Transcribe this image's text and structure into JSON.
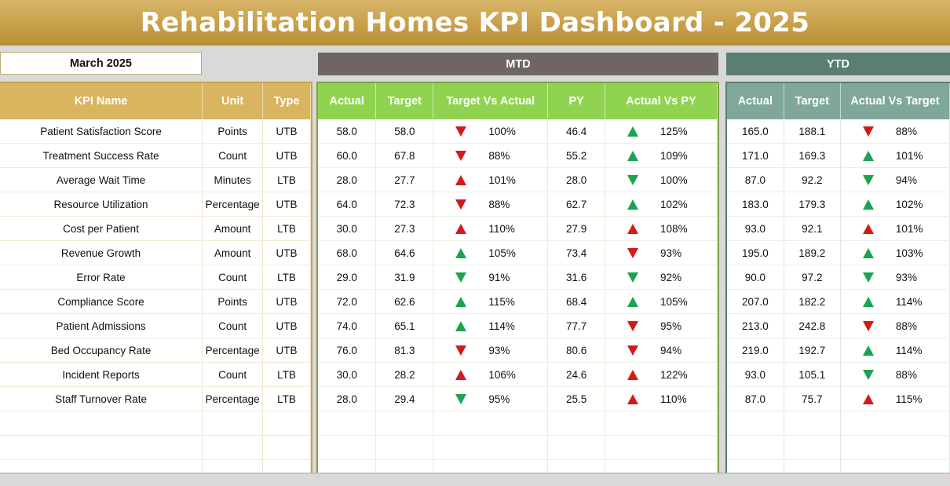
{
  "title": "Rehabilitation Homes KPI Dashboard - 2025",
  "selected_month": "March 2025",
  "mtd_label": "MTD",
  "ytd_label": "YTD",
  "kpi_headers": [
    "KPI Name",
    "Unit",
    "Type"
  ],
  "mtd_headers": [
    "Actual",
    "Target",
    "Target Vs Actual",
    "PY",
    "Actual Vs PY"
  ],
  "ytd_headers": [
    "Actual",
    "Target",
    "Actual Vs Target"
  ],
  "colors": {
    "gold": "#c9a14b",
    "mtd_green": "#90d350",
    "ytd_teal": "#7fa89a",
    "up_green": "#1aa351",
    "down_red": "#d11b1b"
  },
  "rows": [
    {
      "name": "Patient Satisfaction Score",
      "unit": "Points",
      "type": "UTB",
      "mtd_actual": "58.0",
      "mtd_target": "58.0",
      "tva_ind": "down-red",
      "tva_pct": "100%",
      "py": "46.4",
      "avp_ind": "up-green",
      "avp_pct": "125%",
      "ytd_actual": "165.0",
      "ytd_target": "188.1",
      "ytd_ind": "down-red",
      "ytd_pct": "88%"
    },
    {
      "name": "Treatment Success Rate",
      "unit": "Count",
      "type": "UTB",
      "mtd_actual": "60.0",
      "mtd_target": "67.8",
      "tva_ind": "down-red",
      "tva_pct": "88%",
      "py": "55.2",
      "avp_ind": "up-green",
      "avp_pct": "109%",
      "ytd_actual": "171.0",
      "ytd_target": "169.3",
      "ytd_ind": "up-green",
      "ytd_pct": "101%"
    },
    {
      "name": "Average Wait Time",
      "unit": "Minutes",
      "type": "LTB",
      "mtd_actual": "28.0",
      "mtd_target": "27.7",
      "tva_ind": "up-red",
      "tva_pct": "101%",
      "py": "28.0",
      "avp_ind": "down-green",
      "avp_pct": "100%",
      "ytd_actual": "87.0",
      "ytd_target": "92.2",
      "ytd_ind": "down-green",
      "ytd_pct": "94%"
    },
    {
      "name": "Resource Utilization",
      "unit": "Percentage",
      "type": "UTB",
      "mtd_actual": "64.0",
      "mtd_target": "72.3",
      "tva_ind": "down-red",
      "tva_pct": "88%",
      "py": "62.7",
      "avp_ind": "up-green",
      "avp_pct": "102%",
      "ytd_actual": "183.0",
      "ytd_target": "179.3",
      "ytd_ind": "up-green",
      "ytd_pct": "102%"
    },
    {
      "name": "Cost per Patient",
      "unit": "Amount",
      "type": "LTB",
      "mtd_actual": "30.0",
      "mtd_target": "27.3",
      "tva_ind": "up-red",
      "tva_pct": "110%",
      "py": "27.9",
      "avp_ind": "up-red",
      "avp_pct": "108%",
      "ytd_actual": "93.0",
      "ytd_target": "92.1",
      "ytd_ind": "up-red",
      "ytd_pct": "101%"
    },
    {
      "name": "Revenue Growth",
      "unit": "Amount",
      "type": "UTB",
      "mtd_actual": "68.0",
      "mtd_target": "64.6",
      "tva_ind": "up-green",
      "tva_pct": "105%",
      "py": "73.4",
      "avp_ind": "down-red",
      "avp_pct": "93%",
      "ytd_actual": "195.0",
      "ytd_target": "189.2",
      "ytd_ind": "up-green",
      "ytd_pct": "103%"
    },
    {
      "name": "Error Rate",
      "unit": "Count",
      "type": "LTB",
      "mtd_actual": "29.0",
      "mtd_target": "31.9",
      "tva_ind": "down-green",
      "tva_pct": "91%",
      "py": "31.6",
      "avp_ind": "down-green",
      "avp_pct": "92%",
      "ytd_actual": "90.0",
      "ytd_target": "97.2",
      "ytd_ind": "down-green",
      "ytd_pct": "93%"
    },
    {
      "name": "Compliance Score",
      "unit": "Points",
      "type": "UTB",
      "mtd_actual": "72.0",
      "mtd_target": "62.6",
      "tva_ind": "up-green",
      "tva_pct": "115%",
      "py": "68.4",
      "avp_ind": "up-green",
      "avp_pct": "105%",
      "ytd_actual": "207.0",
      "ytd_target": "182.2",
      "ytd_ind": "up-green",
      "ytd_pct": "114%"
    },
    {
      "name": "Patient Admissions",
      "unit": "Count",
      "type": "UTB",
      "mtd_actual": "74.0",
      "mtd_target": "65.1",
      "tva_ind": "up-green",
      "tva_pct": "114%",
      "py": "77.7",
      "avp_ind": "down-red",
      "avp_pct": "95%",
      "ytd_actual": "213.0",
      "ytd_target": "242.8",
      "ytd_ind": "down-red",
      "ytd_pct": "88%"
    },
    {
      "name": "Bed Occupancy Rate",
      "unit": "Percentage",
      "type": "UTB",
      "mtd_actual": "76.0",
      "mtd_target": "81.3",
      "tva_ind": "down-red",
      "tva_pct": "93%",
      "py": "80.6",
      "avp_ind": "down-red",
      "avp_pct": "94%",
      "ytd_actual": "219.0",
      "ytd_target": "192.7",
      "ytd_ind": "up-green",
      "ytd_pct": "114%"
    },
    {
      "name": "Incident Reports",
      "unit": "Count",
      "type": "LTB",
      "mtd_actual": "30.0",
      "mtd_target": "28.2",
      "tva_ind": "up-red",
      "tva_pct": "106%",
      "py": "24.6",
      "avp_ind": "up-red",
      "avp_pct": "122%",
      "ytd_actual": "93.0",
      "ytd_target": "105.1",
      "ytd_ind": "down-green",
      "ytd_pct": "88%"
    },
    {
      "name": "Staff Turnover Rate",
      "unit": "Percentage",
      "type": "LTB",
      "mtd_actual": "28.0",
      "mtd_target": "29.4",
      "tva_ind": "down-green",
      "tva_pct": "95%",
      "py": "25.5",
      "avp_ind": "up-red",
      "avp_pct": "110%",
      "ytd_actual": "87.0",
      "ytd_target": "75.7",
      "ytd_ind": "up-red",
      "ytd_pct": "115%"
    }
  ]
}
